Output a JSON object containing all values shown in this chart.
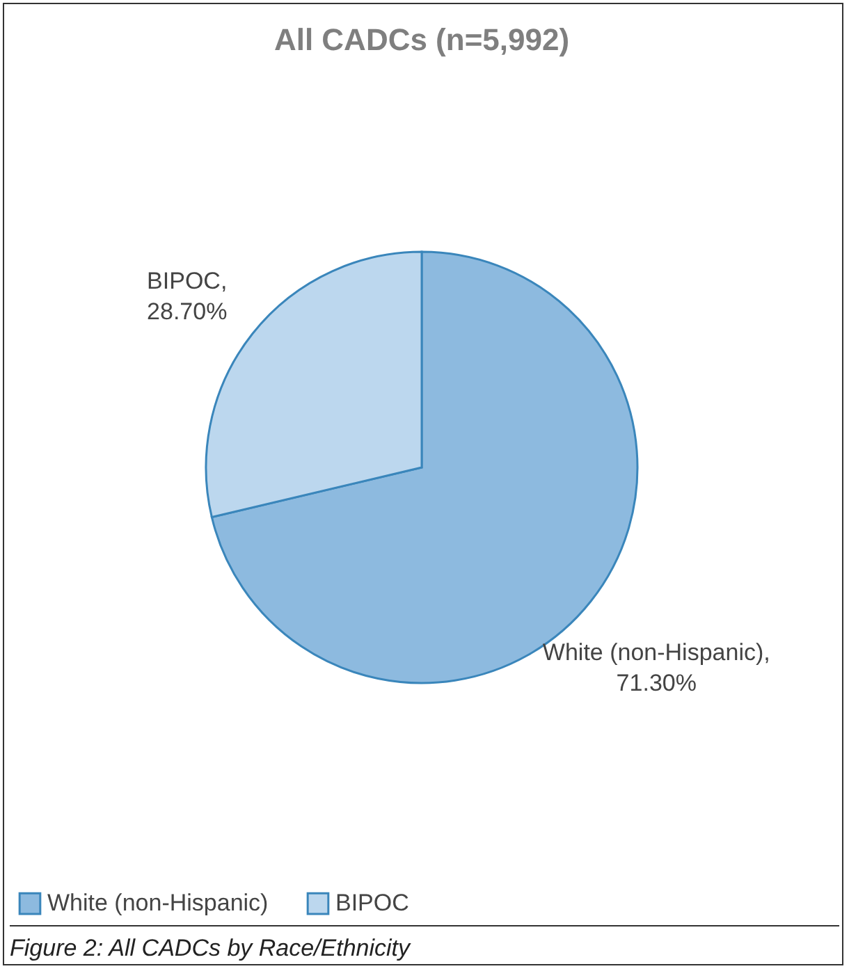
{
  "chart_data": {
    "type": "pie",
    "title": "All CADCs (n=5,992)",
    "categories": [
      "White (non-Hispanic)",
      "BIPOC"
    ],
    "values": [
      71.3,
      28.7
    ],
    "colors": [
      "#8dbadf",
      "#bcd7ee"
    ],
    "value_labels": [
      "White (non-Hispanic), 71.30%",
      "BIPOC, 28.70%"
    ],
    "legend": "bottom",
    "annotations": [
      "Figure 2: All CADCs by Race/Ethnicity"
    ]
  }
}
